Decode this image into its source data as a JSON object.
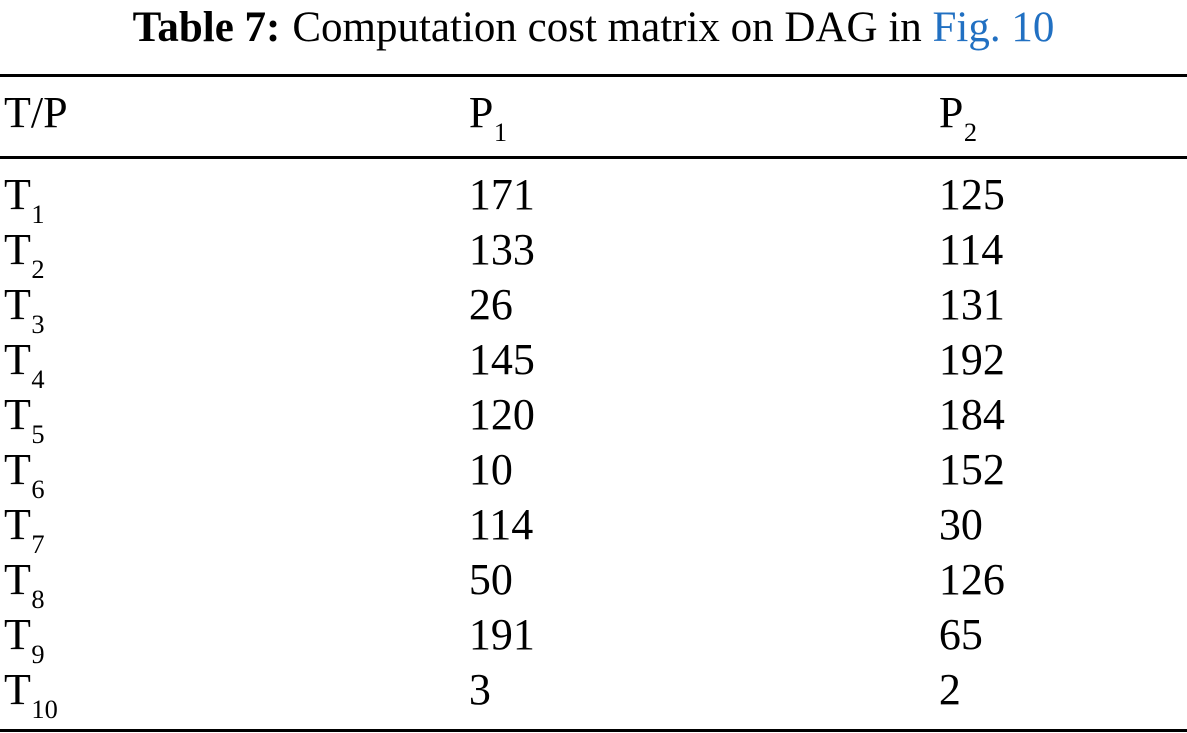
{
  "caption": {
    "label": "Table 7:",
    "text": "Computation cost matrix on DAG in",
    "link": "Fig. 10"
  },
  "colors": {
    "link_blue": "#2170C2",
    "text": "#000000",
    "background": "#FFFFFF",
    "rule": "#000000"
  },
  "table": {
    "columns": [
      {
        "base": "T/P",
        "sub": ""
      },
      {
        "base": "P",
        "sub": "1"
      },
      {
        "base": "P",
        "sub": "2"
      }
    ],
    "rows": [
      {
        "task": {
          "base": "T",
          "sub": "1"
        },
        "p1": "171",
        "p2": "125"
      },
      {
        "task": {
          "base": "T",
          "sub": "2"
        },
        "p1": "133",
        "p2": "114"
      },
      {
        "task": {
          "base": "T",
          "sub": "3"
        },
        "p1": "26",
        "p2": "131"
      },
      {
        "task": {
          "base": "T",
          "sub": "4"
        },
        "p1": "145",
        "p2": "192"
      },
      {
        "task": {
          "base": "T",
          "sub": "5"
        },
        "p1": "120",
        "p2": "184"
      },
      {
        "task": {
          "base": "T",
          "sub": "6"
        },
        "p1": "10",
        "p2": "152"
      },
      {
        "task": {
          "base": "T",
          "sub": "7"
        },
        "p1": "114",
        "p2": "30"
      },
      {
        "task": {
          "base": "T",
          "sub": "8"
        },
        "p1": "50",
        "p2": "126"
      },
      {
        "task": {
          "base": "T",
          "sub": "9"
        },
        "p1": "191",
        "p2": "65"
      },
      {
        "task": {
          "base": "T",
          "sub": "10"
        },
        "p1": "3",
        "p2": "2"
      }
    ]
  }
}
